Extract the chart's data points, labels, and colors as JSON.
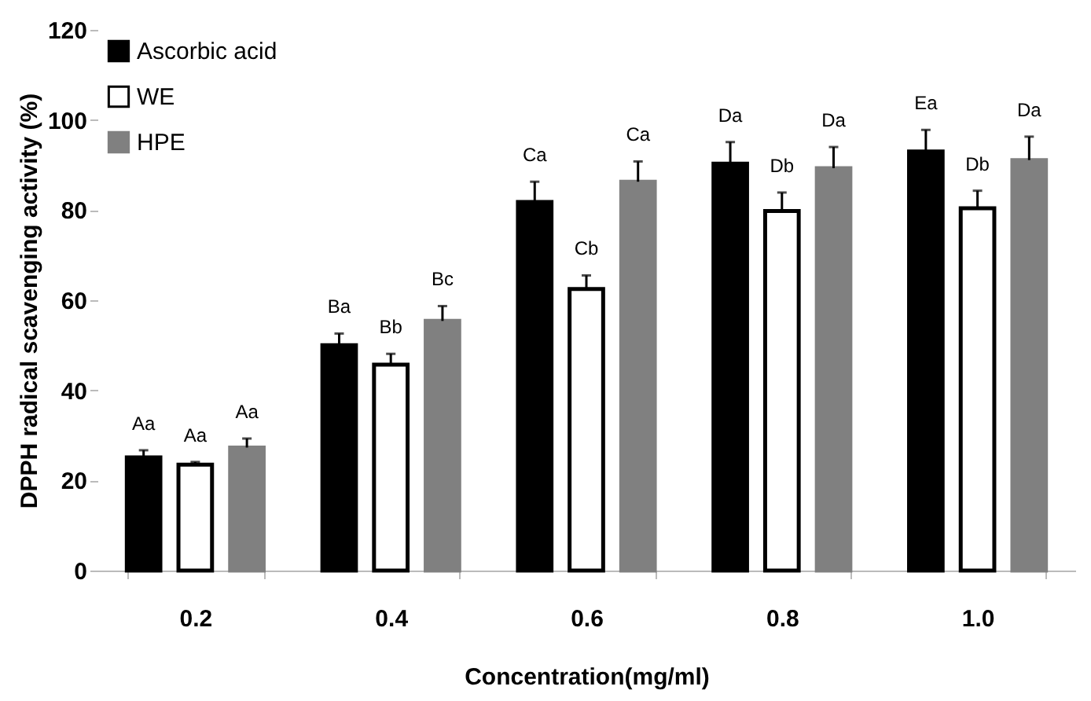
{
  "chart_data": {
    "type": "bar",
    "xlabel": "Concentration(mg/ml)",
    "ylabel": "DPPH radical scavenging activity (%)",
    "categories": [
      "0.2",
      "0.4",
      "0.6",
      "0.8",
      "1.0"
    ],
    "series": [
      {
        "name": "Ascorbic acid",
        "color": "#000000",
        "values": [
          25.1,
          50.0,
          81.8,
          90.3,
          93.0
        ],
        "errors": [
          [
            25.1,
            26.7
          ],
          [
            50.0,
            52.6
          ],
          [
            81.8,
            86.3
          ],
          [
            90.3,
            95.1
          ],
          [
            93.0,
            97.8
          ]
        ],
        "value_labels": [
          "Aa",
          "Ba",
          "Ca",
          "Da",
          "Ea"
        ]
      },
      {
        "name": "WE",
        "color": "#ffffff",
        "values": [
          23.5,
          45.7,
          62.5,
          79.8,
          80.4
        ],
        "errors": [
          [
            23.5,
            24.1
          ],
          [
            45.7,
            48.1
          ],
          [
            62.5,
            65.5
          ],
          [
            79.8,
            83.9
          ],
          [
            80.4,
            84.3
          ]
        ],
        "value_labels": [
          "Aa",
          "Bb",
          "Cb",
          "Db",
          "Db"
        ]
      },
      {
        "name": "HPE",
        "color": "#808080",
        "values": [
          27.3,
          55.4,
          86.3,
          89.3,
          91.1
        ],
        "errors": [
          [
            27.3,
            29.3
          ],
          [
            55.4,
            58.7
          ],
          [
            86.3,
            90.8
          ],
          [
            89.3,
            94.0
          ],
          [
            91.1,
            96.3
          ]
        ],
        "value_labels": [
          "Aa",
          "Bc",
          "Ca",
          "Da",
          "Da"
        ]
      }
    ],
    "ylim": [
      0,
      120
    ],
    "yticks": [
      0,
      20,
      40,
      60,
      80,
      100,
      120
    ],
    "legend": "top left",
    "grid": false
  }
}
